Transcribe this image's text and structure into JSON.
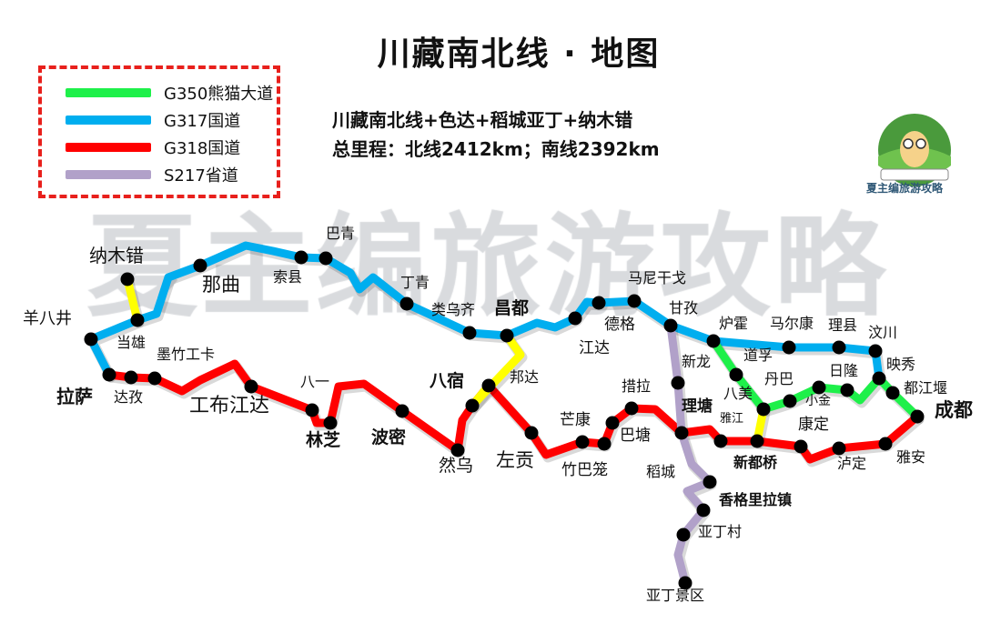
{
  "title": "川藏南北线 · 地图",
  "subtitle_line1": "川藏南北线+色达+稻城亚丁+纳木错",
  "subtitle_line2": "总里程：北线2412km；南线2392km",
  "watermark": "夏主编旅游攻略",
  "logo": {
    "text": "夏主编旅游攻略",
    "badge_text": "夏主编旅游攻略"
  },
  "legend": [
    {
      "label": "G350熊猫大道",
      "color": "#1ef04a"
    },
    {
      "label": "G317国道",
      "color": "#00aeef"
    },
    {
      "label": "G318国道",
      "color": "#ff0000"
    },
    {
      "label": "S217省道",
      "color": "#b1a1c9"
    }
  ],
  "route_colors": {
    "yellow_connector": "#ffff00"
  },
  "stations": [
    {
      "name": "纳木错"
    },
    {
      "name": "羊八井"
    },
    {
      "name": "当雄"
    },
    {
      "name": "那曲"
    },
    {
      "name": "索县"
    },
    {
      "name": "巴青"
    },
    {
      "name": "丁青"
    },
    {
      "name": "类乌齐"
    },
    {
      "name": "昌都",
      "bold": true
    },
    {
      "name": "江达"
    },
    {
      "name": "德格"
    },
    {
      "name": "马尼干戈"
    },
    {
      "name": "甘孜"
    },
    {
      "name": "炉霍"
    },
    {
      "name": "马尔康"
    },
    {
      "name": "理县"
    },
    {
      "name": "汶川"
    },
    {
      "name": "映秀"
    },
    {
      "name": "都江堰"
    },
    {
      "name": "成都",
      "bold": true
    },
    {
      "name": "拉萨",
      "bold": true
    },
    {
      "name": "达孜"
    },
    {
      "name": "墨竹工卡"
    },
    {
      "name": "工布江达"
    },
    {
      "name": "八一"
    },
    {
      "name": "林芝",
      "bold": true
    },
    {
      "name": "波密",
      "bold": true
    },
    {
      "name": "然乌"
    },
    {
      "name": "八宿",
      "bold": true
    },
    {
      "name": "邦达"
    },
    {
      "name": "左贡"
    },
    {
      "name": "竹巴笼"
    },
    {
      "name": "芒康"
    },
    {
      "name": "巴塘"
    },
    {
      "name": "措拉"
    },
    {
      "name": "理塘",
      "bold": true
    },
    {
      "name": "雅江"
    },
    {
      "name": "新都桥",
      "bold": true
    },
    {
      "name": "康定"
    },
    {
      "name": "泸定"
    },
    {
      "name": "雅安"
    },
    {
      "name": "道孚"
    },
    {
      "name": "八美"
    },
    {
      "name": "丹巴"
    },
    {
      "name": "小金"
    },
    {
      "name": "日隆"
    },
    {
      "name": "新龙"
    },
    {
      "name": "稻城"
    },
    {
      "name": "香格里拉镇",
      "bold": true
    },
    {
      "name": "亚丁村"
    },
    {
      "name": "亚丁景区"
    }
  ]
}
